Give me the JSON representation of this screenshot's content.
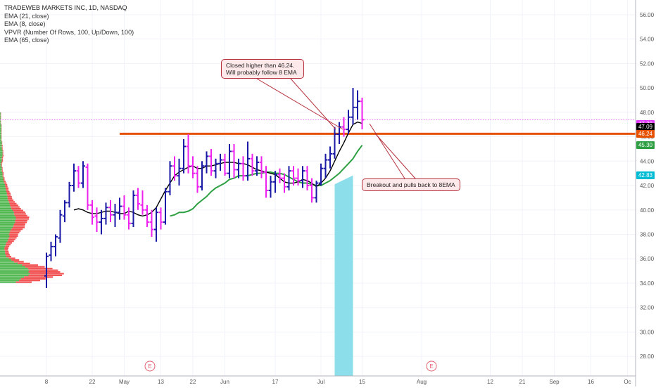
{
  "legend": {
    "title": "TRADEWEB MARKETS INC, 1D, NASDAQ",
    "lines": [
      "EMA (21, close)",
      "EMA (8, close)",
      "VPVR (Number Of Rows, 100, Up/Down, 100)",
      "EMA (65, close)"
    ]
  },
  "annotations": {
    "top": "Closed higher than 46.24.\nWill probably follow 8 EMA",
    "bottom": "Breakout and pulls back to 8EMA"
  },
  "earnings_marker": "E",
  "price_labels": [
    {
      "value": "47.39",
      "color": "#e040fb"
    },
    {
      "value": "47.09",
      "color": "#000000"
    },
    {
      "value": "46.24",
      "color": "#e65100"
    },
    {
      "value": "45.30",
      "color": "#2ea043"
    },
    {
      "value": "42.83",
      "color": "#00bcd4"
    }
  ],
  "colors": {
    "up": "#1a1aa6",
    "down": "#ee22ee",
    "ema8": "#000000",
    "ema21": "#2ea043",
    "level": "#e65100",
    "dotted": "#e040fb",
    "projection": "#86dcea",
    "vol_up": "#33aa33",
    "vol_down": "#ee3333",
    "grid": "#f0f3fa"
  },
  "chart_data": {
    "type": "ohlc",
    "title": "TRADEWEB MARKETS INC, 1D, NASDAQ",
    "y_axis": {
      "ticks": [
        28,
        30,
        32,
        34,
        36,
        38,
        40,
        42,
        44,
        46,
        48,
        50,
        52,
        54,
        56
      ],
      "range": [
        26.4,
        57.2
      ]
    },
    "x_axis": {
      "ticks": [
        {
          "label": "8",
          "i": 0
        },
        {
          "label": "22",
          "i": 10
        },
        {
          "label": "May",
          "i": 17
        },
        {
          "label": "13",
          "i": 25
        },
        {
          "label": "22",
          "i": 32
        },
        {
          "label": "Jun",
          "i": 39
        },
        {
          "label": "17",
          "i": 50
        },
        {
          "label": "Jul",
          "i": 60
        },
        {
          "label": "15",
          "i": 69
        },
        {
          "label": "Aug",
          "i": 82
        },
        {
          "label": "12",
          "i": 97
        },
        {
          "label": "21",
          "i": 104
        },
        {
          "label": "Sep",
          "i": 111
        },
        {
          "label": "16",
          "i": 119
        },
        {
          "label": "Oc",
          "i": 127
        }
      ]
    },
    "ohlc": [
      [
        34.6,
        36.5,
        33.6,
        36.2
      ],
      [
        36.3,
        37.4,
        35.8,
        37.0
      ],
      [
        37.0,
        38.0,
        36.2,
        37.8
      ],
      [
        37.7,
        40.0,
        37.3,
        39.6
      ],
      [
        39.5,
        40.8,
        39.0,
        40.6
      ],
      [
        40.6,
        42.3,
        40.2,
        42.0
      ],
      [
        42.0,
        43.8,
        41.5,
        43.2
      ],
      [
        43.2,
        43.6,
        41.8,
        42.2
      ],
      [
        42.2,
        44.0,
        41.8,
        43.6
      ],
      [
        43.5,
        43.8,
        40.0,
        40.4
      ],
      [
        40.4,
        40.8,
        38.8,
        39.4
      ],
      [
        39.5,
        40.2,
        38.2,
        39.0
      ],
      [
        39.0,
        40.0,
        38.0,
        39.3
      ],
      [
        39.3,
        40.6,
        38.8,
        40.2
      ],
      [
        40.2,
        40.8,
        39.0,
        39.6
      ],
      [
        39.6,
        40.5,
        38.6,
        39.8
      ],
      [
        39.8,
        41.0,
        39.2,
        40.3
      ],
      [
        40.3,
        41.2,
        39.2,
        39.6
      ],
      [
        39.6,
        40.2,
        38.4,
        38.9
      ],
      [
        38.9,
        41.6,
        38.6,
        41.2
      ],
      [
        41.2,
        41.8,
        40.0,
        40.5
      ],
      [
        40.4,
        41.6,
        39.6,
        40.0
      ],
      [
        40.0,
        40.4,
        38.6,
        39.0
      ],
      [
        39.0,
        40.0,
        37.8,
        38.4
      ],
      [
        38.4,
        40.2,
        37.4,
        39.8
      ],
      [
        39.8,
        40.2,
        38.4,
        39.0
      ],
      [
        39.0,
        41.8,
        38.8,
        41.5
      ],
      [
        41.5,
        44.0,
        41.2,
        43.6
      ],
      [
        43.6,
        44.4,
        42.4,
        42.8
      ],
      [
        42.8,
        44.2,
        42.0,
        43.4
      ],
      [
        43.4,
        45.8,
        43.0,
        45.2
      ],
      [
        45.2,
        46.2,
        43.0,
        43.6
      ],
      [
        43.6,
        44.4,
        42.6,
        43.0
      ],
      [
        43.0,
        43.6,
        41.4,
        41.9
      ],
      [
        41.9,
        44.0,
        41.6,
        43.6
      ],
      [
        43.6,
        44.8,
        43.0,
        44.4
      ],
      [
        44.4,
        45.0,
        42.8,
        43.2
      ],
      [
        43.2,
        44.2,
        42.6,
        43.8
      ],
      [
        43.8,
        44.6,
        43.2,
        44.1
      ],
      [
        44.1,
        44.6,
        42.8,
        43.0
      ],
      [
        43.0,
        45.4,
        42.6,
        44.8
      ],
      [
        44.8,
        45.4,
        42.6,
        43.3
      ],
      [
        43.3,
        44.2,
        42.6,
        43.8
      ],
      [
        43.8,
        44.4,
        42.4,
        42.8
      ],
      [
        42.8,
        45.6,
        42.4,
        44.2
      ],
      [
        44.2,
        44.6,
        42.8,
        43.2
      ],
      [
        43.2,
        44.4,
        42.8,
        43.9
      ],
      [
        43.9,
        44.4,
        42.6,
        43.1
      ],
      [
        43.1,
        43.6,
        41.0,
        41.6
      ],
      [
        41.6,
        42.8,
        41.0,
        42.3
      ],
      [
        42.3,
        43.2,
        41.4,
        42.9
      ],
      [
        42.9,
        43.4,
        42.2,
        42.6
      ],
      [
        42.6,
        43.0,
        41.4,
        41.9
      ],
      [
        41.9,
        43.6,
        41.6,
        43.2
      ],
      [
        43.2,
        43.6,
        42.0,
        42.6
      ],
      [
        42.6,
        43.4,
        42.0,
        42.4
      ],
      [
        42.4,
        43.6,
        41.8,
        43.2
      ],
      [
        43.2,
        43.6,
        41.6,
        42.0
      ],
      [
        42.0,
        42.6,
        40.6,
        41.0
      ],
      [
        41.0,
        42.4,
        40.6,
        42.2
      ],
      [
        42.2,
        43.8,
        42.0,
        43.4
      ],
      [
        43.4,
        44.6,
        42.6,
        44.1
      ],
      [
        44.1,
        45.2,
        43.4,
        44.6
      ],
      [
        44.6,
        46.8,
        44.2,
        46.2
      ],
      [
        46.2,
        47.2,
        45.4,
        46.8
      ],
      [
        46.8,
        47.6,
        46.0,
        46.6
      ],
      [
        46.6,
        48.2,
        46.2,
        47.6
      ],
      [
        47.6,
        50.0,
        47.0,
        48.4
      ],
      [
        48.4,
        49.8,
        47.4,
        48.9
      ],
      [
        48.9,
        49.2,
        46.6,
        47.39
      ]
    ],
    "ema8": [
      40.0,
      40.1,
      40.0,
      39.8,
      39.7,
      39.7,
      39.8,
      39.9,
      39.9,
      39.8,
      39.7,
      39.7,
      39.9,
      39.8,
      39.6,
      39.5,
      39.6,
      39.8,
      40.2,
      40.9,
      41.6,
      42.2,
      42.8,
      43.1,
      43.3,
      43.5,
      43.6,
      43.4,
      43.4,
      43.6,
      43.6,
      43.7,
      43.8,
      43.9,
      43.9,
      43.9,
      43.8,
      43.8,
      43.7,
      43.5,
      43.3,
      43.2,
      43.1,
      43.0,
      42.9,
      42.6,
      42.3,
      42.2,
      42.2,
      42.3,
      42.5,
      42.4,
      42.2,
      41.9,
      42.2,
      42.6,
      43.2,
      44.0,
      44.8,
      45.5,
      46.3,
      47.0,
      47.2,
      47.09
    ],
    "ema21": [
      39.5,
      39.6,
      39.8,
      39.8,
      39.9,
      40.1,
      40.5,
      40.8,
      41.1,
      41.5,
      41.8,
      42.0,
      42.2,
      42.5,
      42.6,
      42.8,
      42.8,
      42.8,
      42.9,
      43.0,
      43.0,
      43.1,
      43.1,
      43.0,
      43.0,
      42.9,
      42.7,
      42.5,
      42.3,
      42.2,
      42.2,
      42.1,
      42.0,
      42.0,
      42.2,
      42.4,
      42.7,
      43.0,
      43.4,
      43.8,
      44.2,
      44.8,
      45.3
    ],
    "ema_start": {
      "ema8": 6,
      "ema21": 27
    },
    "level": 46.24,
    "level_start_i": 16,
    "dotted_level": 47.39,
    "projection": {
      "from_i": 63,
      "to_i": 67,
      "low": 26.4,
      "top_left": 42.1,
      "top_right": 42.83
    },
    "earnings_i": [
      22,
      84
    ],
    "vpvr": {
      "price_start": 34.0,
      "price_step": 0.14,
      "up": [
        25,
        30,
        33,
        38,
        45,
        47,
        45,
        46,
        44,
        40,
        35,
        28,
        22,
        18,
        14,
        10,
        9,
        8,
        8,
        7,
        7,
        8,
        9,
        10,
        12,
        13,
        14,
        15,
        14,
        15,
        16,
        18,
        20,
        21,
        22,
        24,
        24,
        25,
        25,
        23,
        22,
        22,
        20,
        18,
        17,
        16,
        15,
        14,
        13,
        12,
        12,
        11,
        11,
        10,
        9,
        9,
        8,
        8,
        7,
        6,
        5,
        5,
        4,
        4,
        4,
        3,
        3,
        3,
        2,
        2,
        2,
        3,
        3,
        3,
        4,
        4,
        4,
        4,
        3,
        3,
        3,
        3,
        3,
        2,
        2,
        2,
        2,
        2,
        2,
        2,
        2,
        2,
        2,
        1,
        1,
        1,
        1,
        1,
        1,
        1
      ],
      "down": [
        45,
        60,
        70,
        82,
        95,
        97,
        90,
        82,
        70,
        55,
        45,
        35,
        28,
        22,
        18,
        14,
        12,
        11,
        10,
        10,
        11,
        12,
        14,
        16,
        18,
        20,
        22,
        24,
        26,
        28,
        30,
        32,
        34,
        33,
        32,
        33,
        35,
        37,
        38,
        36,
        34,
        32,
        30,
        27,
        25,
        23,
        20,
        17,
        15,
        13,
        12,
        11,
        10,
        9,
        8,
        8,
        7,
        6,
        6,
        5,
        4,
        4,
        3,
        3,
        3,
        3,
        2,
        2,
        2,
        2,
        3,
        3,
        3,
        3,
        3,
        2,
        2,
        2,
        2,
        2,
        2,
        1,
        1,
        1,
        1,
        1,
        1,
        1,
        1,
        1,
        1,
        1,
        1,
        1,
        1,
        1,
        1,
        1,
        1,
        1
      ]
    }
  }
}
